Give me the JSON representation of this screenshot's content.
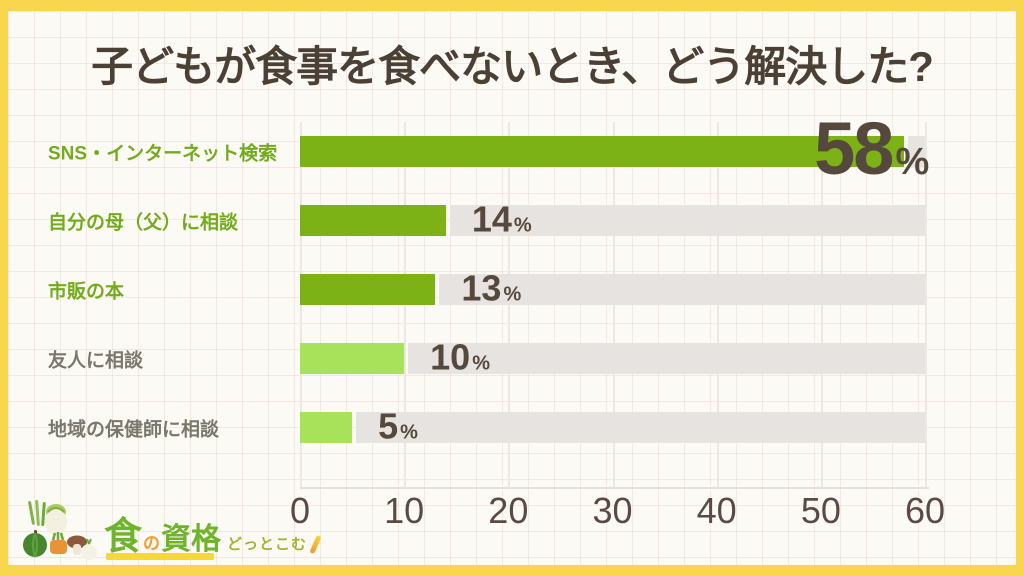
{
  "title": "子どもが食事を食べないとき、どう解決した?",
  "colors": {
    "frame": "#F8D64E",
    "background": "#FCFAF5",
    "title_text": "#4B4036",
    "dark_green_bar": "#7CB216",
    "light_green_bar": "#A8E15A",
    "track": "#E6E3E0",
    "green_label": "#73AB1D",
    "gray_label": "#7A776D",
    "value_text": "#55493D",
    "axis_text": "#5A4A45"
  },
  "chart_data": {
    "type": "bar",
    "orientation": "horizontal",
    "title": "子どもが食事を食べないとき、どう解決した?",
    "categories": [
      "SNS・インターネット検索",
      "自分の母（父）に相談",
      "市販の本",
      "友人に相談",
      "地域の保健師に相談"
    ],
    "values": [
      58,
      14,
      13,
      10,
      5
    ],
    "value_suffix": "%",
    "xlim": [
      0,
      60
    ],
    "x_ticks": [
      "0",
      "10",
      "20",
      "30",
      "40",
      "50",
      "60"
    ],
    "grid": true,
    "legend": false,
    "rows": [
      {
        "label": "SNS・インターネット検索",
        "value": 58,
        "display": "58",
        "suffix": "%",
        "bar_color": "#7CB216",
        "label_color": "#73AB1D",
        "emphasized": true
      },
      {
        "label": "自分の母（父）に相談",
        "value": 14,
        "display": "14",
        "suffix": "%",
        "bar_color": "#7CB216",
        "label_color": "#73AB1D",
        "emphasized": false
      },
      {
        "label": "市販の本",
        "value": 13,
        "display": "13",
        "suffix": "%",
        "bar_color": "#7CB216",
        "label_color": "#73AB1D",
        "emphasized": false
      },
      {
        "label": "友人に相談",
        "value": 10,
        "display": "10",
        "suffix": "%",
        "bar_color": "#A8E15A",
        "label_color": "#7A776D",
        "emphasized": false
      },
      {
        "label": "地域の保健師に相談",
        "value": 5,
        "display": "5",
        "suffix": "%",
        "bar_color": "#A8E15A",
        "label_color": "#7A776D",
        "emphasized": false
      }
    ]
  },
  "logo": {
    "shoku": "食",
    "no": "の",
    "shikaku": "資格",
    "sub": "どっとこむ",
    "underline_color": "#F6D73C"
  }
}
